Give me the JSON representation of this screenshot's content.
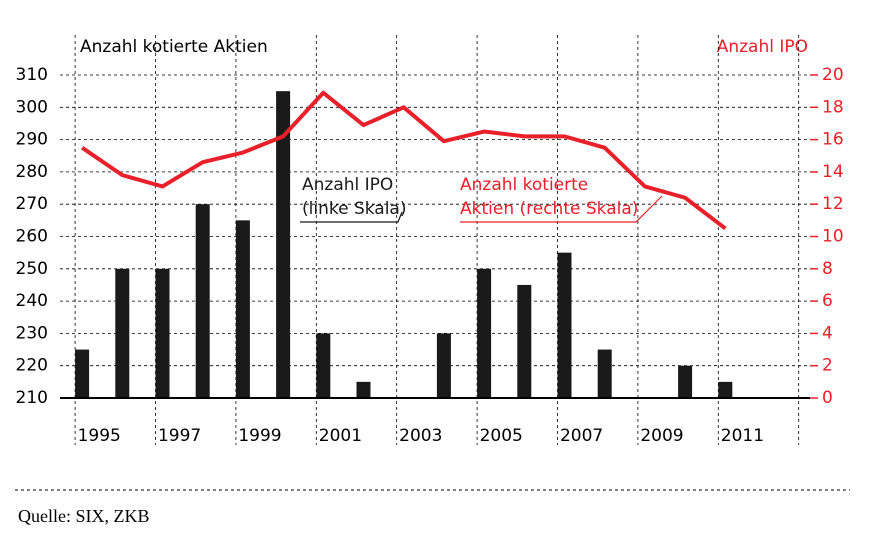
{
  "chart_data": {
    "type": "bar_line",
    "y_label": "Anzahl kotierte Aktien",
    "y2_label": "Anzahl IPO",
    "categories": [
      "1995",
      null,
      "1997",
      null,
      "1999",
      null,
      "2001",
      null,
      "2003",
      null,
      "2005",
      null,
      "2007",
      null,
      "2009",
      null,
      "2011",
      null
    ],
    "series": [
      {
        "type": "bar",
        "color": "#1a1a1a",
        "values": [
          225,
          250,
          250,
          270,
          265,
          305,
          230,
          215,
          null,
          230,
          250,
          245,
          255,
          225,
          null,
          220,
          215,
          null
        ]
      },
      {
        "type": "line",
        "axis": "y2",
        "color": "#e8202a",
        "values": [
          15.5,
          13.8,
          13.1,
          14.6,
          15.2,
          16.2,
          18.9,
          16.9,
          18.0,
          15.9,
          16.5,
          16.2,
          16.2,
          15.5,
          13.1,
          12.4,
          10.5,
          null
        ]
      }
    ],
    "ylim": [
      210,
      310
    ],
    "yticks": [
      210,
      220,
      230,
      240,
      250,
      260,
      270,
      280,
      290,
      300,
      310
    ],
    "y2lim": [
      0,
      20
    ],
    "y2ticks": [
      0,
      2,
      4,
      6,
      8,
      10,
      12,
      14,
      16,
      18,
      20
    ],
    "grid": true,
    "annotations": [
      {
        "lines": [
          "Anzahl IPO",
          "(linke Skala)"
        ],
        "color": "#1a1a1a"
      },
      {
        "lines": [
          "Anzahl kotierte",
          "Aktien (rechte Skala)"
        ],
        "color": "#e8202a"
      }
    ],
    "source": "Quelle: SIX, ZKB"
  }
}
